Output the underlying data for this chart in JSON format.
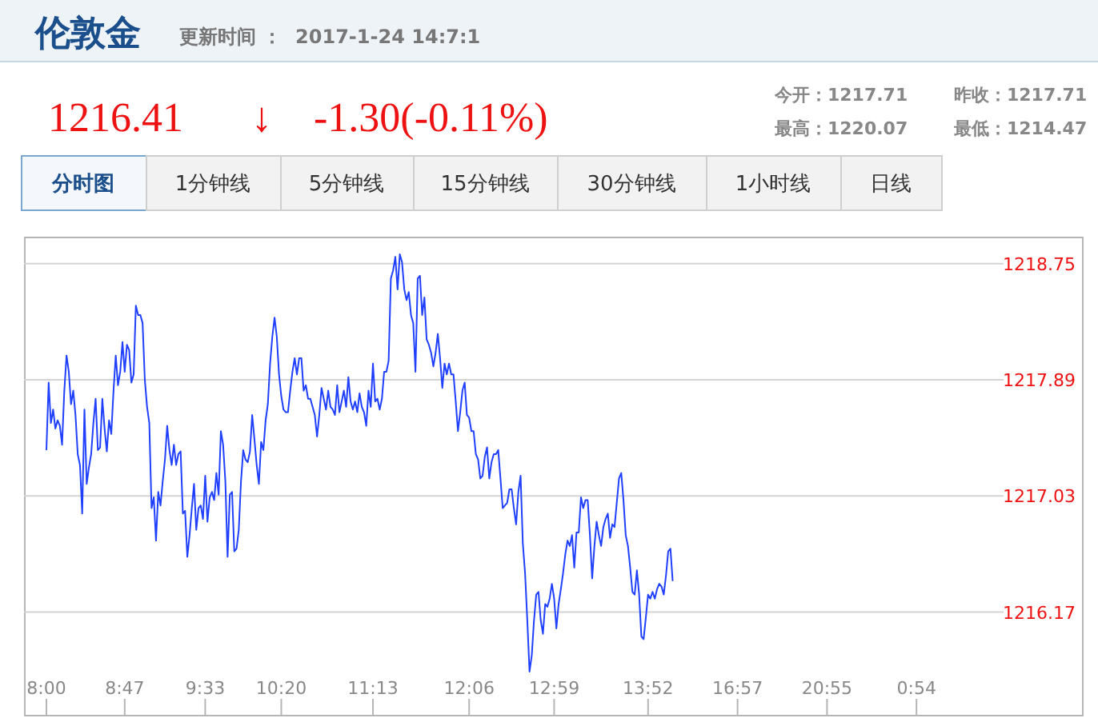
{
  "chart_data": {
    "type": "line",
    "title": "伦敦金",
    "subtitle": "更新时间 ：  2017-1-24 14:7:1",
    "annotations": [
      "1216.41",
      "↓",
      "-1.30(-0.11%)",
      "今开：1217.71",
      "昨收：1217.71",
      "最高：1220.07",
      "最低：1214.47",
      "分时图",
      "1分钟线",
      "5分钟线",
      "15分钟线",
      "30分钟线",
      "1小时线",
      "日线"
    ],
    "categories": [
      "8:00",
      null,
      null,
      null,
      null,
      null,
      null,
      null,
      null,
      null,
      null,
      null,
      null,
      null,
      null,
      null,
      null,
      null,
      null,
      null,
      null,
      null,
      null,
      null,
      null,
      null,
      null,
      null,
      null,
      null,
      null,
      null,
      null,
      null,
      null,
      "8:47",
      null,
      null,
      null,
      null,
      null,
      null,
      null,
      null,
      null,
      null,
      null,
      null,
      null,
      null,
      null,
      null,
      null,
      null,
      null,
      null,
      null,
      null,
      null,
      null,
      null,
      null,
      null,
      null,
      null,
      null,
      null,
      null,
      null,
      null,
      null,
      "9:33",
      null,
      null,
      null,
      null,
      null,
      null,
      null,
      null,
      null,
      null,
      null,
      null,
      null,
      null,
      null,
      null,
      null,
      null,
      null,
      null,
      null,
      null,
      null,
      null,
      null,
      null,
      null,
      null,
      null,
      null,
      null,
      null,
      null,
      "10:20",
      null,
      null,
      null,
      null,
      null,
      null,
      null,
      null,
      null,
      null,
      null,
      null,
      null,
      null,
      null,
      null,
      null,
      null,
      null,
      null,
      null,
      null,
      null,
      null,
      null,
      null,
      null,
      null,
      null,
      null,
      null,
      null,
      null,
      null,
      null,
      null,
      null,
      null,
      null,
      null,
      "11:13",
      null,
      null,
      null,
      null,
      null,
      null,
      null,
      null,
      null,
      null,
      null,
      null,
      null,
      null,
      null,
      null,
      null,
      null,
      null,
      null,
      null,
      null,
      null,
      null,
      null,
      null,
      null,
      null,
      null,
      null,
      null,
      null,
      null,
      null,
      null,
      null,
      null,
      null,
      null,
      null,
      null,
      null,
      "12:06",
      null,
      null,
      null,
      null,
      null,
      null,
      null,
      null,
      null,
      null,
      null,
      null,
      null,
      null,
      null,
      null,
      null,
      null,
      null,
      null,
      null,
      null,
      null,
      null,
      null,
      null,
      null,
      null,
      null,
      null,
      null,
      null,
      null,
      null,
      null,
      null,
      null,
      "12:59",
      null,
      null,
      null,
      null,
      null,
      null,
      null,
      null,
      null,
      null,
      null,
      null,
      null,
      null,
      null,
      null,
      null,
      null,
      null,
      null,
      null,
      null,
      null,
      null,
      null,
      null,
      null,
      null,
      null,
      null,
      null,
      null,
      null,
      null,
      null,
      null,
      null,
      null,
      null,
      null,
      null,
      "13:52",
      null,
      null,
      null,
      null,
      null,
      null,
      null,
      null,
      null,
      null,
      null,
      null,
      null,
      null,
      null,
      null,
      null,
      null,
      null,
      null,
      null,
      null,
      null,
      null,
      null,
      null,
      null,
      null,
      null,
      null,
      null,
      null,
      null,
      null,
      null,
      null,
      null,
      null,
      null,
      "16:57",
      null,
      null,
      null,
      null,
      null,
      null,
      null,
      null,
      null,
      null,
      null,
      null,
      null,
      null,
      null,
      null,
      null,
      null,
      null,
      null,
      null,
      null,
      null,
      null,
      null,
      null,
      null,
      null,
      null,
      null,
      null,
      null,
      null,
      null,
      null,
      null,
      null,
      null,
      null,
      "20:55",
      null,
      null,
      null,
      null,
      null,
      null,
      null,
      null,
      null,
      null,
      null,
      null,
      null,
      null,
      null,
      null,
      null,
      null,
      null,
      null,
      null,
      null,
      null,
      null,
      null,
      null,
      null,
      null,
      null,
      null,
      null,
      null,
      null,
      null,
      null,
      null,
      null,
      null,
      null,
      "0:54"
    ],
    "ylim": [
      1215.41,
      1218.95
    ],
    "yticks": [
      1216.17,
      1217.03,
      1217.89,
      1218.75
    ],
    "grid": "y",
    "series": [
      {
        "color": "#2040ff",
        "values": [
          1217.37,
          1217.87,
          1217.57,
          1217.67,
          1217.53,
          1217.59,
          1217.55,
          1217.41,
          1217.81,
          1218.07,
          1217.95,
          1217.71,
          1217.81,
          1217.63,
          1217.34,
          1217.26,
          1216.9,
          1217.67,
          1217.12,
          1217.24,
          1217.34,
          1217.57,
          1217.75,
          1217.37,
          1217.39,
          1217.75,
          1217.53,
          1217.36,
          1217.59,
          1217.49,
          1217.81,
          1218.07,
          1217.85,
          1217.95,
          1218.17,
          1217.95,
          1218.15,
          1218.11,
          1217.87,
          1217.93,
          1218.44,
          1218.37,
          1218.37,
          1218.31,
          1217.89,
          1217.69,
          1217.57,
          1216.94,
          1217.02,
          1216.7,
          1217.06,
          1216.96,
          1217.14,
          1217.3,
          1217.55,
          1217.37,
          1217.26,
          1217.41,
          1217.26,
          1217.34,
          1217.36,
          1216.9,
          1216.92,
          1216.58,
          1216.74,
          1216.94,
          1217.12,
          1216.78,
          1216.94,
          1216.96,
          1216.86,
          1217.18,
          1216.84,
          1217.02,
          1217.06,
          1217.0,
          1217.2,
          1217.04,
          1217.51,
          1217.41,
          1217.14,
          1216.58,
          1217.04,
          1217.06,
          1216.62,
          1216.64,
          1216.78,
          1217.14,
          1217.37,
          1217.3,
          1217.28,
          1217.36,
          1217.63,
          1217.45,
          1217.26,
          1217.12,
          1217.43,
          1217.37,
          1217.59,
          1217.71,
          1218.01,
          1218.21,
          1218.35,
          1218.21,
          1217.93,
          1217.77,
          1217.67,
          1217.65,
          1217.65,
          1217.81,
          1217.95,
          1218.05,
          1217.93,
          1218.05,
          1218.05,
          1217.81,
          1217.85,
          1217.75,
          1217.75,
          1217.69,
          1217.63,
          1217.47,
          1217.63,
          1217.83,
          1217.75,
          1217.67,
          1217.81,
          1217.69,
          1217.67,
          1217.63,
          1217.85,
          1217.65,
          1217.73,
          1217.81,
          1217.69,
          1217.91,
          1217.73,
          1217.67,
          1217.73,
          1217.65,
          1217.79,
          1217.69,
          1217.65,
          1217.55,
          1217.81,
          1217.69,
          1218.01,
          1217.73,
          1217.75,
          1217.67,
          1217.75,
          1217.95,
          1217.95,
          1218.03,
          1218.64,
          1218.7,
          1218.8,
          1218.56,
          1218.82,
          1218.76,
          1218.56,
          1218.48,
          1218.54,
          1218.37,
          1218.31,
          1217.95,
          1218.64,
          1218.66,
          1218.37,
          1218.5,
          1218.19,
          1218.15,
          1218.09,
          1217.99,
          1218.09,
          1218.23,
          1218.05,
          1217.83,
          1218.01,
          1217.93,
          1218.01,
          1217.93,
          1217.93,
          1217.73,
          1217.51,
          1217.65,
          1217.81,
          1217.87,
          1217.63,
          1217.61,
          1217.51,
          1217.51,
          1217.34,
          1217.3,
          1217.16,
          1217.18,
          1217.32,
          1217.39,
          1217.16,
          1217.28,
          1217.34,
          1217.34,
          1217.37,
          1217.16,
          1216.94,
          1216.96,
          1216.98,
          1217.08,
          1217.08,
          1216.94,
          1216.82,
          1217.06,
          1217.18,
          1216.68,
          1216.46,
          1216.11,
          1215.73,
          1215.85,
          1216.11,
          1216.3,
          1216.32,
          1216.11,
          1216.01,
          1216.23,
          1216.21,
          1216.27,
          1216.38,
          1216.27,
          1216.05,
          1216.23,
          1216.34,
          1216.46,
          1216.6,
          1216.7,
          1216.66,
          1216.74,
          1216.5,
          1216.76,
          1216.76,
          1217.02,
          1216.94,
          1217.0,
          1217.0,
          1216.74,
          1216.42,
          1216.66,
          1216.84,
          1216.74,
          1216.66,
          1216.8,
          1216.86,
          1216.9,
          1216.72,
          1216.82,
          1216.8,
          1216.98,
          1217.16,
          1217.2,
          1217.0,
          1216.74,
          1216.66,
          1216.5,
          1216.32,
          1216.3,
          1216.48,
          1216.3,
          1215.99,
          1215.97,
          1216.13,
          1216.3,
          1216.27,
          1216.32,
          1216.27,
          1216.34,
          1216.38,
          1216.36,
          1216.3,
          1216.44,
          1216.62,
          1216.64,
          1216.4,
          null,
          null,
          null,
          null,
          null,
          null,
          null,
          null,
          null,
          null,
          null,
          null,
          null,
          null,
          null,
          null,
          null,
          null,
          null,
          null,
          null,
          null,
          null,
          null,
          null,
          null,
          null,
          null,
          null,
          null,
          null,
          null,
          null,
          null,
          null,
          null,
          null,
          null,
          null,
          null,
          null,
          null,
          null,
          null,
          null,
          null,
          null,
          null,
          null,
          null,
          null,
          null,
          null,
          null,
          null,
          null,
          null,
          null,
          null,
          null,
          null,
          null,
          null,
          null,
          null,
          null,
          null,
          null,
          null,
          null,
          null,
          null,
          null,
          null,
          null,
          null,
          null,
          null,
          null,
          null,
          null,
          null,
          null,
          null,
          null,
          null,
          null,
          null,
          null,
          null,
          null,
          null,
          null,
          null,
          null,
          null,
          null,
          null,
          null,
          null,
          null,
          null,
          null,
          null,
          null,
          null,
          null,
          null,
          null
        ]
      }
    ]
  }
}
